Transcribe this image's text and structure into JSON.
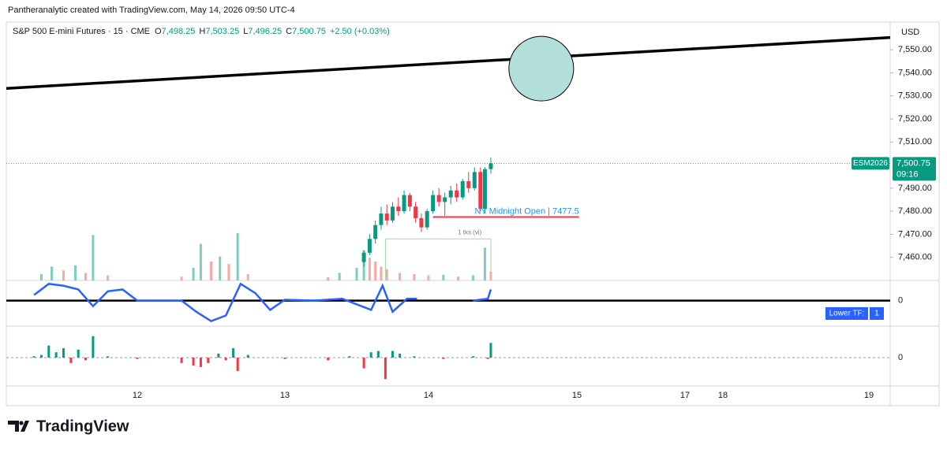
{
  "header": {
    "attribution": "Pantheranalytic created with TradingView.com, May 14, 2026 09:50 UTC-4"
  },
  "chart_data": {
    "type": "candlestick",
    "title": "S&P 500 E-mini Futures · 15 · CME",
    "legend": [
      {
        "label": "O",
        "value": "7,498.25"
      },
      {
        "label": "H",
        "value": "7,503.25"
      },
      {
        "label": "L",
        "value": "7,496.25"
      },
      {
        "label": "C",
        "value": "7,500.75"
      }
    ],
    "change": "+2.50 (+0.03%)",
    "currency": "USD",
    "x": [
      13.55,
      13.59,
      13.63,
      13.67,
      13.71,
      13.75,
      13.79,
      13.83,
      13.87,
      13.91,
      13.95,
      13.99,
      14.03,
      14.07,
      14.11,
      14.15,
      14.19,
      14.23,
      14.27,
      14.31,
      14.35,
      14.38,
      14.42
    ],
    "open": [
      7458,
      7462,
      7468,
      7474,
      7479,
      7476,
      7482,
      7480,
      7487,
      7482,
      7477,
      7473,
      7480,
      7487,
      7484,
      7486,
      7489,
      7486,
      7493,
      7490,
      7497,
      7481,
      7498.25
    ],
    "high": [
      7463,
      7470,
      7476,
      7482,
      7483,
      7484,
      7486,
      7489,
      7488,
      7484,
      7479,
      7481,
      7489,
      7490,
      7488,
      7491,
      7492,
      7494,
      7497,
      7499,
      7499,
      7499,
      7503.25
    ],
    "low": [
      7456,
      7461,
      7466,
      7472,
      7474,
      7475,
      7478,
      7479,
      7480,
      7475,
      7471,
      7472,
      7479,
      7482,
      7478,
      7483,
      7484,
      7485,
      7488,
      7489,
      7480,
      7479,
      7496.25
    ],
    "close": [
      7462,
      7468,
      7474,
      7479,
      7476,
      7482,
      7480,
      7487,
      7482,
      7477,
      7473,
      7480,
      7487,
      7484,
      7486,
      7489,
      7486,
      7493,
      7490,
      7497,
      7481,
      7498.25,
      7500.75
    ],
    "up_color": "#089981",
    "down_color": "#f23645",
    "ylim": [
      7450,
      7562
    ],
    "yticks": [
      {
        "value": 7460,
        "label": "7,460.00"
      },
      {
        "value": 7470,
        "label": "7,470.00"
      },
      {
        "value": 7480,
        "label": "7,480.00"
      },
      {
        "value": 7490,
        "label": "7,490.00"
      },
      {
        "value": 7510,
        "label": "7,510.00"
      },
      {
        "value": 7520,
        "label": "7,520.00"
      },
      {
        "value": 7530,
        "label": "7,530.00"
      },
      {
        "value": 7540,
        "label": "7,540.00"
      },
      {
        "value": 7550,
        "label": "7,550.00"
      }
    ],
    "xticks": [
      12,
      13,
      14,
      15,
      17,
      18,
      19
    ],
    "last_price": {
      "symbol": "ESM2026",
      "value": 7500.75,
      "label": "7,500.75",
      "countdown": "09:16",
      "color": "#089981"
    },
    "trendline": {
      "x": [
        11.1,
        19.48
      ],
      "y": [
        7533.2,
        7556.5
      ],
      "color": "#000000"
    },
    "circle": {
      "x": 14.76,
      "y": 7541.8,
      "color": "#b2dfd7"
    },
    "level": {
      "text": "NY Midnight Open | 7477.5",
      "value": 7477.5,
      "x": [
        14.03,
        15.04
      ],
      "color": "#f23645",
      "text_color": "#2196f3"
    },
    "range_note": {
      "text": "1 tks (vi)",
      "x": [
        13.7,
        14.42
      ],
      "y": 7468,
      "color": "#a5d6a7"
    },
    "volume": {
      "x": [
        11.35,
        11.42,
        11.5,
        11.58,
        11.65,
        11.7,
        11.8,
        12.3,
        12.38,
        12.43,
        12.5,
        12.56,
        12.62,
        12.68,
        12.75,
        13.3,
        13.38,
        13.5,
        13.55,
        13.59,
        13.63,
        13.67,
        13.71,
        13.8,
        13.9,
        14.0,
        14.1,
        14.2,
        14.3,
        14.38,
        14.42
      ],
      "values": [
        10,
        22,
        16,
        24,
        12,
        72,
        8,
        6,
        20,
        58,
        30,
        38,
        26,
        75,
        10,
        5,
        12,
        20,
        48,
        36,
        30,
        22,
        18,
        12,
        10,
        8,
        9,
        6,
        8,
        52,
        14
      ],
      "ylim": [
        0,
        100
      ],
      "colors": [
        "#7fcdbf",
        "#f7a9a7"
      ]
    },
    "oscillator": {
      "x": [
        11.3,
        11.4,
        11.5,
        11.6,
        11.7,
        11.8,
        11.9,
        12.0,
        12.3,
        12.4,
        12.5,
        12.6,
        12.7,
        12.8,
        12.9,
        13.0,
        13.2,
        13.4,
        13.6,
        13.68,
        13.75,
        13.85,
        13.92,
        14.0,
        14.3,
        14.4,
        14.42
      ],
      "values": [
        0.3,
        0.9,
        0.8,
        0.6,
        -0.3,
        0.5,
        0.6,
        0.0,
        0.0,
        -0.6,
        -1.1,
        -0.8,
        0.9,
        0.4,
        -0.5,
        0.05,
        0.0,
        0.1,
        -0.5,
        0.8,
        -0.6,
        0.1,
        0.1,
        null,
        0.0,
        0.1,
        0.6
      ],
      "ylim": [
        -1.2,
        1
      ],
      "yticks": [
        0
      ],
      "color": "#2962ff"
    },
    "histogram": {
      "x": [
        11.3,
        11.35,
        11.4,
        11.45,
        11.5,
        11.55,
        11.6,
        11.65,
        11.7,
        11.8,
        12.0,
        12.3,
        12.38,
        12.43,
        12.48,
        12.55,
        12.6,
        12.65,
        12.68,
        12.75,
        13.0,
        13.3,
        13.45,
        13.55,
        13.6,
        13.65,
        13.7,
        13.75,
        13.8,
        13.9,
        14.1,
        14.3,
        14.4,
        14.42
      ],
      "values": [
        0.05,
        0.1,
        0.45,
        0.2,
        0.35,
        -0.2,
        0.3,
        -0.1,
        0.8,
        0.05,
        -0.05,
        -0.2,
        -0.3,
        -0.35,
        -0.2,
        0.15,
        -0.1,
        0.35,
        -0.5,
        0.1,
        -0.05,
        -0.1,
        0.05,
        -0.4,
        0.2,
        0.25,
        -0.8,
        0.25,
        0.15,
        0.05,
        -0.05,
        0.05,
        -0.05,
        0.55
      ],
      "ylim": [
        -1,
        1
      ],
      "yticks": [
        0
      ],
      "pos_color": "#089981",
      "neg_color": "#f23645"
    },
    "lower_tf": {
      "label": "Lower TF:",
      "value": "1"
    }
  },
  "footer": {
    "logo": "TradingView"
  }
}
